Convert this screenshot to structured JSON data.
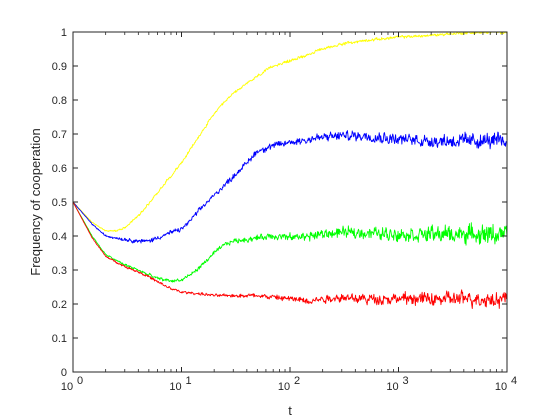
{
  "chart_data": {
    "type": "line",
    "xlabel": "t",
    "ylabel": "Frequency of cooperation",
    "xscale": "log",
    "xlim": [
      1,
      10000
    ],
    "ylim": [
      0,
      1
    ],
    "grid": false,
    "box": true,
    "xticks": [
      {
        "value": 1,
        "base": "10",
        "exp": "0"
      },
      {
        "value": 10,
        "base": "10",
        "exp": "1"
      },
      {
        "value": 100,
        "base": "10",
        "exp": "2"
      },
      {
        "value": 1000,
        "base": "10",
        "exp": "3"
      },
      {
        "value": 10000,
        "base": "10",
        "exp": "4"
      }
    ],
    "yticks": [
      0,
      0.1,
      0.2,
      0.3,
      0.4,
      0.5,
      0.6,
      0.7,
      0.8,
      0.9,
      1
    ],
    "ytick_labels": [
      "0",
      "0.1",
      "0.2",
      "0.3",
      "0.4",
      "0.5",
      "0.6",
      "0.7",
      "0.8",
      "0.9",
      "1"
    ],
    "series": [
      {
        "color": "#ffff00",
        "noise": 0.006,
        "x": [
          1,
          1.5,
          2,
          2.5,
          3,
          4,
          5,
          7,
          10,
          15,
          20,
          30,
          50,
          70,
          100,
          150,
          200,
          300,
          500,
          700,
          1000,
          2000,
          3000,
          5000,
          10000
        ],
        "y": [
          0.5,
          0.44,
          0.415,
          0.415,
          0.425,
          0.46,
          0.495,
          0.555,
          0.615,
          0.7,
          0.76,
          0.82,
          0.87,
          0.9,
          0.915,
          0.935,
          0.95,
          0.965,
          0.975,
          0.98,
          0.985,
          0.99,
          0.995,
          0.998,
          1.0
        ]
      },
      {
        "color": "#0000ff",
        "noise": 0.01,
        "noise_growth": 0.025,
        "x": [
          1,
          1.5,
          2,
          3,
          4,
          5,
          6,
          8,
          10,
          12,
          15,
          20,
          30,
          40,
          50,
          70,
          100,
          150,
          200,
          300,
          500,
          1000,
          2000,
          5000,
          10000
        ],
        "y": [
          0.5,
          0.435,
          0.4,
          0.39,
          0.385,
          0.385,
          0.395,
          0.41,
          0.42,
          0.445,
          0.48,
          0.52,
          0.575,
          0.615,
          0.65,
          0.665,
          0.675,
          0.685,
          0.69,
          0.695,
          0.695,
          0.685,
          0.68,
          0.68,
          0.68
        ]
      },
      {
        "color": "#00ff00",
        "noise": 0.008,
        "noise_growth": 0.035,
        "x": [
          1,
          1.5,
          2,
          3,
          4,
          5,
          6,
          8,
          10,
          12,
          15,
          20,
          25,
          30,
          40,
          50,
          70,
          100,
          150,
          200,
          300,
          500,
          1000,
          2000,
          5000,
          10000
        ],
        "y": [
          0.5,
          0.4,
          0.345,
          0.315,
          0.3,
          0.285,
          0.275,
          0.268,
          0.27,
          0.285,
          0.31,
          0.35,
          0.375,
          0.385,
          0.39,
          0.395,
          0.4,
          0.395,
          0.4,
          0.405,
          0.41,
          0.41,
          0.405,
          0.405,
          0.405,
          0.405
        ]
      },
      {
        "color": "#ff0000",
        "noise": 0.006,
        "noise_growth": 0.03,
        "x": [
          1,
          1.5,
          2,
          3,
          4,
          5,
          6,
          8,
          10,
          15,
          20,
          30,
          50,
          70,
          100,
          150,
          200,
          300,
          500,
          1000,
          2000,
          5000,
          10000
        ],
        "y": [
          0.5,
          0.395,
          0.34,
          0.31,
          0.295,
          0.28,
          0.265,
          0.245,
          0.235,
          0.23,
          0.225,
          0.225,
          0.225,
          0.22,
          0.215,
          0.21,
          0.215,
          0.22,
          0.215,
          0.215,
          0.215,
          0.215,
          0.215
        ]
      }
    ]
  }
}
